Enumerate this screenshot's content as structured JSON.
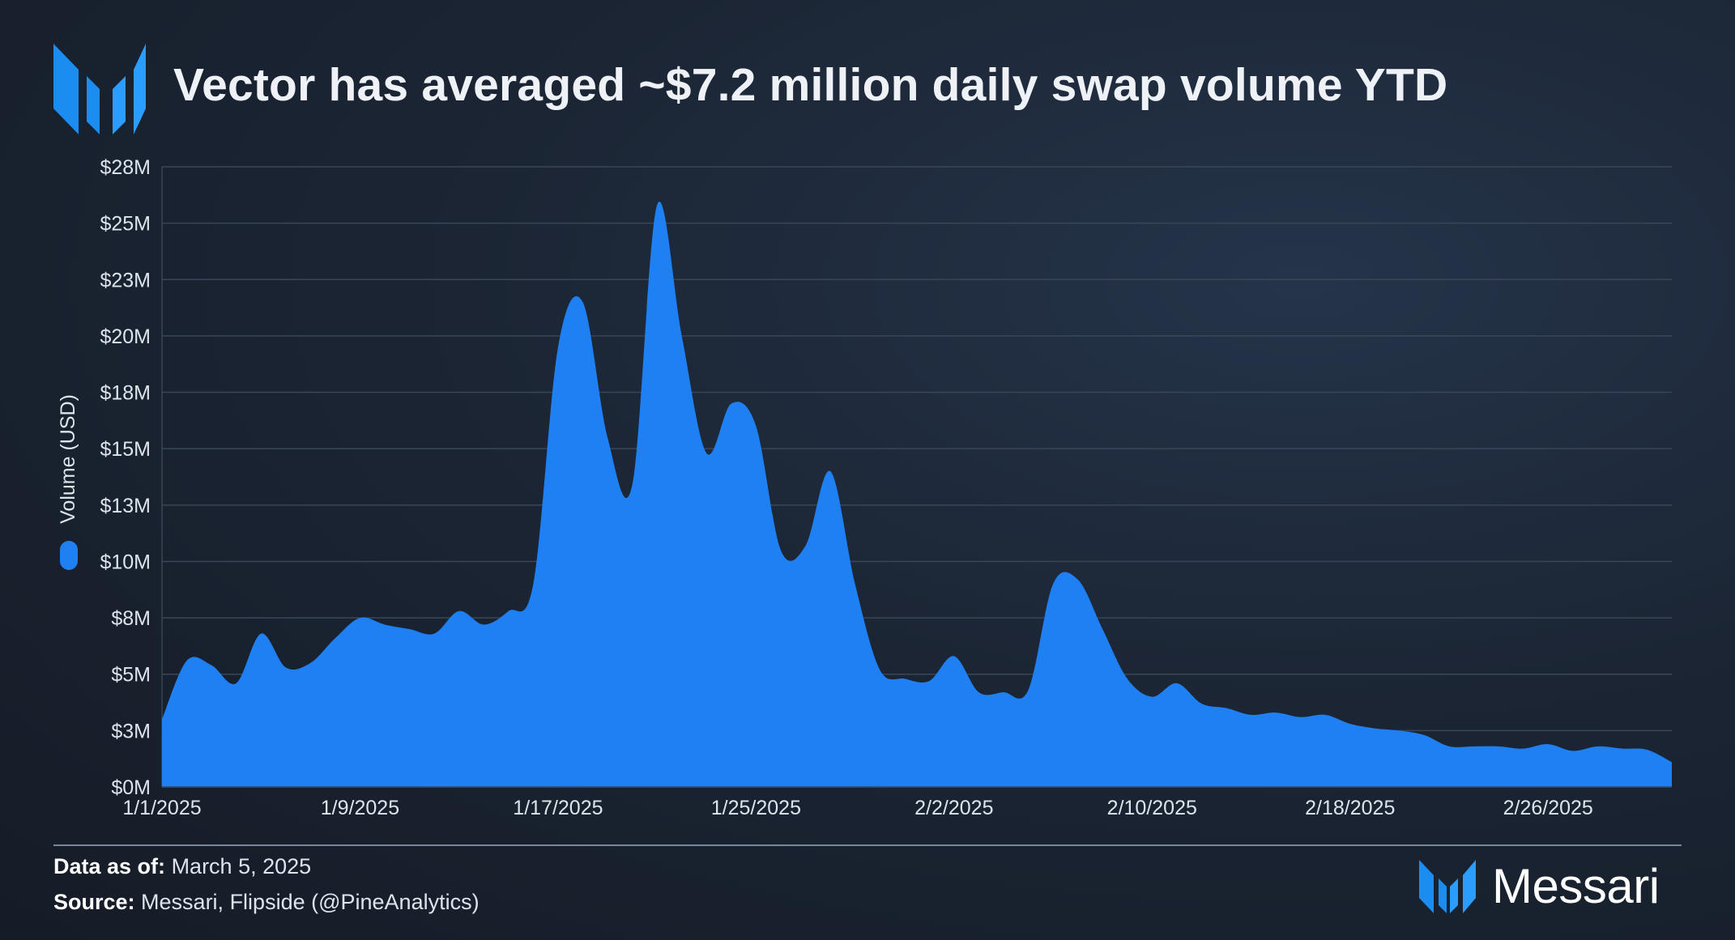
{
  "header": {
    "title": "Vector has averaged ~$7.2 million daily swap volume YTD",
    "logo_icon": "messari-logo-icon"
  },
  "colors": {
    "area_fill": "#1e80f2",
    "accent": "#1e90ff",
    "grid": "#3a4658",
    "background": "#1b2534"
  },
  "chart_data": {
    "type": "area",
    "title": "Vector has averaged ~$7.2 million daily swap volume YTD",
    "xlabel": "",
    "ylabel": "Volume (USD)",
    "ylim": [
      0,
      27.5
    ],
    "y_ticks": [
      0,
      2.5,
      5,
      7.5,
      10,
      12.5,
      15,
      17.5,
      20,
      22.5,
      25,
      27.5
    ],
    "y_tick_labels": [
      "$0M",
      "$3M",
      "$5M",
      "$8M",
      "$10M",
      "$13M",
      "$15M",
      "$18M",
      "$20M",
      "$23M",
      "$25M",
      "$28M"
    ],
    "x_tick_labels": [
      "1/1/2025",
      "1/9/2025",
      "1/17/2025",
      "1/25/2025",
      "2/2/2025",
      "2/10/2025",
      "2/18/2025",
      "2/26/2025"
    ],
    "x_tick_index": [
      0,
      8,
      16,
      24,
      32,
      40,
      48,
      56
    ],
    "legend": "left",
    "series": [
      {
        "name": "Volume (USD)",
        "unit": "USD millions",
        "x_start": "1/1/2025",
        "values": [
          3.0,
          5.6,
          5.4,
          4.6,
          6.8,
          5.3,
          5.5,
          6.6,
          7.5,
          7.2,
          7.0,
          6.8,
          7.8,
          7.2,
          7.8,
          9.0,
          19.5,
          21.5,
          15.5,
          13.4,
          25.8,
          20.0,
          14.8,
          17.0,
          16.0,
          10.5,
          10.7,
          14.0,
          9.0,
          5.2,
          4.8,
          4.7,
          5.8,
          4.2,
          4.2,
          4.3,
          9.0,
          9.2,
          7.0,
          4.8,
          4.0,
          4.6,
          3.7,
          3.5,
          3.2,
          3.3,
          3.1,
          3.2,
          2.8,
          2.6,
          2.5,
          2.3,
          1.8,
          1.8,
          1.8,
          1.7,
          1.9,
          1.6,
          1.8,
          1.7,
          1.65,
          1.1
        ]
      }
    ]
  },
  "footer": {
    "date_label": "Data as of:",
    "date_value": "March 5, 2025",
    "source_label": "Source:",
    "source_value": "Messari, Flipside (@PineAnalytics)",
    "brand": "Messari",
    "brand_icon": "messari-logo-icon"
  }
}
